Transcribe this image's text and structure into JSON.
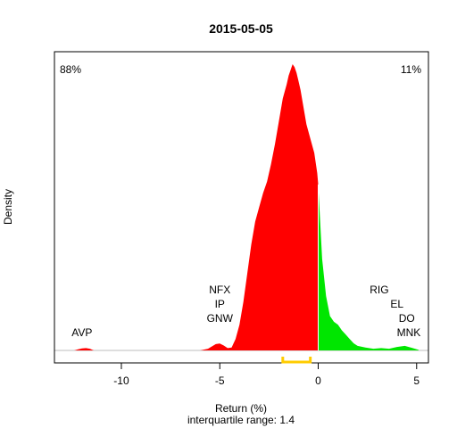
{
  "chart_data": {
    "type": "area",
    "title": "2015-05-05",
    "xlabel": "Return (%)",
    "subtitle": "interquartile range: 1.4",
    "ylabel": "Density",
    "xlim": [
      -13.4,
      5.6
    ],
    "ylim": [
      0,
      1.0
    ],
    "x_ticks": [
      -10,
      -5,
      0,
      5
    ],
    "x_tick_labels": [
      "-10",
      "-5",
      "0",
      "5"
    ],
    "split_at": 0,
    "neg_color": "#ff0000",
    "pos_color": "#00e600",
    "pct_negative": "88%",
    "pct_positive": "11%",
    "pct_negative_color": "#ff0000",
    "pct_positive_color": "#008000",
    "iqr_color": "#ffcc00",
    "iqr": [
      -1.8,
      -0.4
    ],
    "density_x": [
      -12.4,
      -12.2,
      -12.0,
      -11.8,
      -11.6,
      -11.4,
      -6.0,
      -5.6,
      -5.4,
      -5.2,
      -5.0,
      -4.8,
      -4.6,
      -4.4,
      -4.2,
      -4.0,
      -3.8,
      -3.6,
      -3.4,
      -3.2,
      -3.0,
      -2.8,
      -2.6,
      -2.4,
      -2.2,
      -2.0,
      -1.8,
      -1.6,
      -1.5,
      -1.4,
      -1.3,
      -1.2,
      -1.1,
      -1.0,
      -0.9,
      -0.8,
      -0.6,
      -0.4,
      -0.2,
      -0.05,
      0.0,
      0.1,
      0.2,
      0.4,
      0.6,
      0.8,
      1.0,
      1.2,
      1.4,
      1.6,
      1.8,
      2.0,
      2.4,
      2.8,
      3.2,
      3.6,
      4.0,
      4.4,
      4.8,
      5.1
    ],
    "density_y": [
      0,
      0.004,
      0.007,
      0.008,
      0.006,
      0,
      0,
      0.006,
      0.014,
      0.022,
      0.024,
      0.017,
      0.008,
      0.01,
      0.04,
      0.09,
      0.17,
      0.27,
      0.37,
      0.45,
      0.5,
      0.55,
      0.59,
      0.65,
      0.72,
      0.8,
      0.88,
      0.93,
      0.96,
      0.98,
      1.0,
      0.99,
      0.97,
      0.94,
      0.91,
      0.87,
      0.79,
      0.74,
      0.69,
      0.62,
      0.58,
      0.45,
      0.32,
      0.19,
      0.12,
      0.1,
      0.09,
      0.07,
      0.055,
      0.04,
      0.025,
      0.016,
      0.01,
      0.006,
      0.008,
      0.006,
      0.012,
      0.016,
      0.008,
      0.002
    ],
    "annotations": [
      {
        "text": "AVP",
        "x": -12.0,
        "y": 0.05
      },
      {
        "text": "NFX",
        "x": -5.0,
        "y": 0.2
      },
      {
        "text": "IP",
        "x": -5.0,
        "y": 0.15
      },
      {
        "text": "GNW",
        "x": -5.0,
        "y": 0.1
      },
      {
        "text": "RIG",
        "x": 3.1,
        "y": 0.2
      },
      {
        "text": "EL",
        "x": 4.0,
        "y": 0.15
      },
      {
        "text": "DO",
        "x": 4.5,
        "y": 0.1
      },
      {
        "text": "MNK",
        "x": 4.6,
        "y": 0.05
      }
    ]
  }
}
